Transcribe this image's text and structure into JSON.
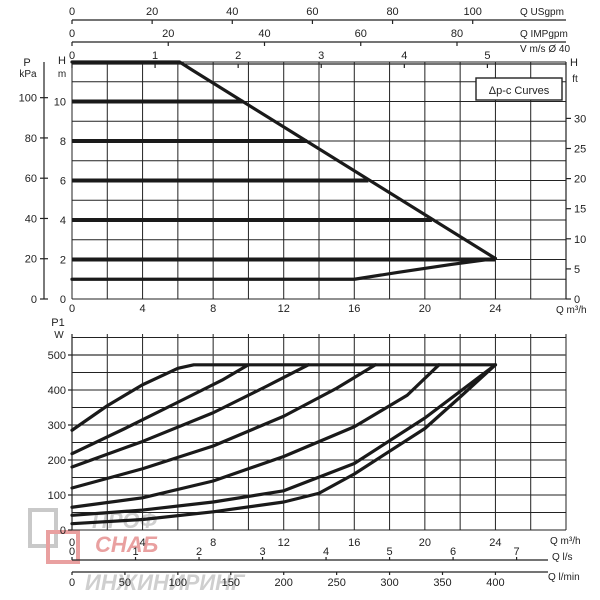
{
  "chart_data": [
    {
      "type": "line",
      "legend": "Δp-c Curves",
      "x_main": {
        "label": "Q m³/h",
        "ticks": [
          0,
          4,
          8,
          12,
          16,
          20,
          24
        ],
        "range": [
          0,
          28
        ]
      },
      "x_top_us": {
        "label": "Q USgpm",
        "ticks": [
          0,
          20,
          40,
          60,
          80,
          100
        ]
      },
      "x_top_imp": {
        "label": "Q IMPgpm",
        "ticks": [
          0,
          20,
          40,
          60,
          80
        ]
      },
      "x_top_v": {
        "label": "V m/s Ø 40",
        "ticks": [
          0,
          1,
          2,
          3,
          4,
          5
        ]
      },
      "y_left_p": {
        "label_top": "P",
        "label_unit": "kPa",
        "ticks": [
          0,
          20,
          40,
          60,
          80,
          100
        ]
      },
      "y_left_h": {
        "label": "H",
        "unit": "m",
        "ticks": [
          0,
          2,
          4,
          6,
          8,
          10
        ],
        "range": [
          0,
          12
        ]
      },
      "y_right_h": {
        "label": "H",
        "unit": "ft",
        "ticks": [
          0,
          5,
          10,
          15,
          20,
          25,
          30
        ],
        "range": [
          0,
          39.4
        ]
      },
      "envelope": [
        [
          0,
          12
        ],
        [
          6.1,
          12
        ],
        [
          6.8,
          11.6
        ],
        [
          24,
          2.05
        ]
      ],
      "series": [
        {
          "head_m": 10,
          "x": [
            0,
            9.7
          ]
        },
        {
          "head_m": 8,
          "x": [
            0,
            13.3
          ]
        },
        {
          "head_m": 6,
          "x": [
            0,
            16.8
          ]
        },
        {
          "head_m": 4,
          "x": [
            0,
            20.4
          ]
        },
        {
          "head_m": 2,
          "x": [
            0,
            24
          ]
        }
      ],
      "min_curve": [
        [
          0,
          1
        ],
        [
          16,
          1
        ],
        [
          18.5,
          1.35
        ],
        [
          21.5,
          1.75
        ],
        [
          24,
          2.05
        ]
      ]
    },
    {
      "type": "line",
      "x_main": {
        "label": "Q m³/h",
        "ticks": [
          0,
          4,
          8,
          12,
          16,
          20,
          24
        ],
        "range": [
          0,
          28
        ]
      },
      "y_left": {
        "label_top": "P1",
        "label_unit": "W",
        "ticks": [
          0,
          100,
          200,
          300,
          400,
          500
        ],
        "range": [
          0,
          560
        ]
      },
      "max_line": 472,
      "ref_line": 500,
      "series": [
        {
          "points": [
            [
              0,
              285
            ],
            [
              2,
              355
            ],
            [
              4,
              415
            ],
            [
              6,
              462
            ],
            [
              6.9,
              472
            ],
            [
              24,
              472
            ]
          ]
        },
        {
          "points": [
            [
              0,
              218
            ],
            [
              3,
              290
            ],
            [
              6,
              365
            ],
            [
              8.5,
              428
            ],
            [
              10,
              472
            ]
          ]
        },
        {
          "points": [
            [
              0,
              180
            ],
            [
              4,
              253
            ],
            [
              8,
              335
            ],
            [
              11,
              410
            ],
            [
              13.4,
              472
            ]
          ]
        },
        {
          "points": [
            [
              0,
              120
            ],
            [
              4,
              175
            ],
            [
              8,
              240
            ],
            [
              12,
              325
            ],
            [
              15,
              405
            ],
            [
              17.2,
              472
            ]
          ]
        },
        {
          "points": [
            [
              0,
              65
            ],
            [
              4,
              92
            ],
            [
              8,
              140
            ],
            [
              12,
              210
            ],
            [
              16,
              295
            ],
            [
              19,
              385
            ],
            [
              20.8,
              472
            ]
          ]
        },
        {
          "points": [
            [
              0,
              42
            ],
            [
              4,
              57
            ],
            [
              8,
              80
            ],
            [
              12,
              112
            ],
            [
              16,
              190
            ],
            [
              20,
              320
            ],
            [
              24,
              472
            ]
          ]
        },
        {
          "points": [
            [
              0,
              18
            ],
            [
              4,
              30
            ],
            [
              8,
              52
            ],
            [
              12,
              80
            ],
            [
              14,
              105
            ],
            [
              16,
              160
            ],
            [
              20,
              290
            ],
            [
              22,
              380
            ],
            [
              24,
              472
            ]
          ]
        }
      ],
      "x_bottom_ls": {
        "label": "Q l/s",
        "ticks": [
          0,
          1,
          2,
          3,
          4,
          5,
          6,
          7
        ]
      },
      "x_bottom_lmin": {
        "label": "Q l/min",
        "ticks": [
          0,
          50,
          100,
          150,
          200,
          250,
          300,
          350,
          400
        ]
      }
    }
  ],
  "watermark": {
    "line1": "ПРОФ",
    "line2": "СНАБ",
    "line3": "ИНЖИНИРИНГ"
  }
}
